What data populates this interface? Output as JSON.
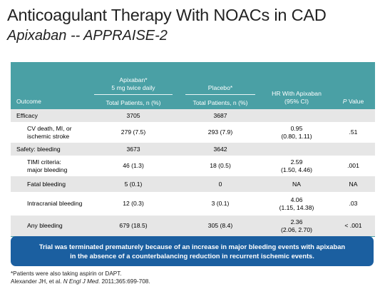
{
  "slide": {
    "title": "Anticoagulant Therapy With NOACs in CAD",
    "subtitle": "Apixaban -- APPRAISE-2"
  },
  "table": {
    "header_top": {
      "apixaban_line1": "Apixaban*",
      "apixaban_line2": "5 mg twice daily",
      "placebo": "Placebo*",
      "hr_line1": "HR With Apixaban",
      "hr_line2": "(95% CI)",
      "p_prefix": "P",
      "p_suffix": " Value",
      "outcome": "Outcome"
    },
    "header_sub": {
      "apixaban": "Total Patients, n (%)",
      "placebo": "Total Patients, n (%)"
    },
    "rows": [
      {
        "label_1": "Efficacy",
        "label_2": "",
        "apixaban": "3705",
        "placebo": "3687",
        "hr_1": "",
        "hr_2": "",
        "p": ""
      },
      {
        "label_1": "CV death, MI, or",
        "label_2": "ischemic stroke",
        "apixaban": "279 (7.5)",
        "placebo": "293 (7.9)",
        "hr_1": "0.95",
        "hr_2": "(0.80, 1.11)",
        "p": ".51"
      },
      {
        "label_1": "Safety: bleeding",
        "label_2": "",
        "apixaban": "3673",
        "placebo": "3642",
        "hr_1": "",
        "hr_2": "",
        "p": ""
      },
      {
        "label_1": "TIMI criteria:",
        "label_2": "major bleeding",
        "apixaban": "46 (1.3)",
        "placebo": "18 (0.5)",
        "hr_1": "2.59",
        "hr_2": "(1.50, 4.46)",
        "p": ".001"
      },
      {
        "label_1": "Fatal bleeding",
        "label_2": "",
        "apixaban": "5 (0.1)",
        "placebo": "0",
        "hr_1": "NA",
        "hr_2": "",
        "p": "NA"
      },
      {
        "label_1": "Intracranial bleeding",
        "label_2": "",
        "apixaban": "12 (0.3)",
        "placebo": "3 (0.1)",
        "hr_1": "4.06",
        "hr_2": "(1.15, 14.38)",
        "p": ".03"
      },
      {
        "label_1": "Any bleeding",
        "label_2": "",
        "apixaban": "679 (18.5)",
        "placebo": "305 (8.4)",
        "hr_1": "2.36",
        "hr_2": "(2.06, 2.70)",
        "p": "< .001"
      }
    ],
    "colors": {
      "header_bg": "#4aa0a5",
      "row_shade": "#e6e6e6"
    }
  },
  "callout": {
    "line1": "Trial was terminated prematurely because of an increase in major bleeding events with apixaban",
    "line2": "in the absence of a counterbalancing reduction in recurrent ischemic events.",
    "color": "#1b5fa0"
  },
  "footnotes": {
    "note": "*Patients were also taking aspirin or DAPT.",
    "ref_before": "Alexander JH, et al. ",
    "ref_journal": "N Engl J Med",
    "ref_after": ". 2011;365:699-708."
  }
}
